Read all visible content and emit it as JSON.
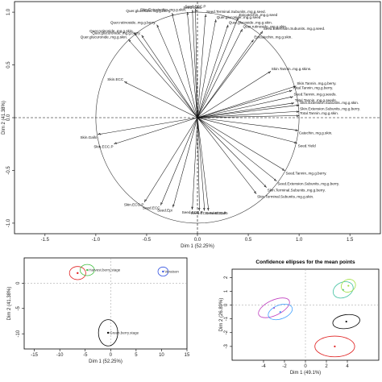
{
  "chart_data": [
    {
      "type": "scatter",
      "subtype": "pca-variable-correlation-circle",
      "xlabel": "Dim 1 (52.25%)",
      "ylabel": "Dim 2 (41.38%)",
      "xlim": [
        -1.8,
        1.8
      ],
      "ylim": [
        -1.1,
        1.1
      ],
      "x_ticks": [
        "-1.5",
        "-1.0",
        "-0.5",
        "0.0",
        "0.5",
        "1.0",
        "1.5"
      ],
      "y_ticks": [
        "-1.0",
        "-0.5",
        "0.0",
        "0.5",
        "1.0"
      ],
      "vectors": [
        {
          "label": "Skin.ECC",
          "x": -0.72,
          "y": 0.34
        },
        {
          "label": "Skin.Gallo",
          "x": -0.98,
          "y": -0.16
        },
        {
          "label": "Skin.ECC.P",
          "x": -0.82,
          "y": -0.25
        },
        {
          "label": "Skin.ECG.P",
          "x": -0.52,
          "y": -0.8
        },
        {
          "label": "Seed.ECC",
          "x": -0.36,
          "y": -0.83
        },
        {
          "label": "Seed.Epi",
          "x": -0.24,
          "y": -0.85
        },
        {
          "label": "Seed.ECC.P",
          "x": -0.05,
          "y": -0.87
        },
        {
          "label": "Seed.ECG",
          "x": 0.02,
          "y": -0.88
        },
        {
          "label": "Seed.ECG.P",
          "x": 0.07,
          "y": -0.88
        },
        {
          "label": "Seed.Gallo",
          "x": 0.11,
          "y": -0.88
        },
        {
          "label": "Skin.Terminal.Subunits..mg.g.skin.",
          "x": 0.58,
          "y": -0.72
        },
        {
          "label": "Skin.Terminal.Subunits..mg.g.berry.",
          "x": 0.68,
          "y": -0.66
        },
        {
          "label": "Seed.Extension.Subunits..mg.g.berry.",
          "x": 0.78,
          "y": -0.6
        },
        {
          "label": "Seed.Tannin..mg.g.berry.",
          "x": 0.86,
          "y": -0.5
        },
        {
          "label": "Seed.Yield",
          "x": 0.98,
          "y": -0.24
        },
        {
          "label": "Catechin..mg.g.skin.",
          "x": 0.99,
          "y": -0.12
        },
        {
          "label": "Total.Tannin..mg.g.skin.",
          "x": 1.0,
          "y": 0.02
        },
        {
          "label": "Skin.Tannin..mg.g.berry.",
          "x": 0.97,
          "y": 0.3
        },
        {
          "label": "Total.Tannin..mg.g.seeds.",
          "x": 0.95,
          "y": 0.14
        },
        {
          "label": "Seed.Tannin..mg.g.seeds.",
          "x": 0.94,
          "y": 0.2
        },
        {
          "label": "Total.Tannin..mg.g.berry.",
          "x": 0.93,
          "y": 0.26
        },
        {
          "label": "Skin.Extension.Subunits..mg.g.skin.",
          "x": 1.0,
          "y": 0.12
        },
        {
          "label": "Skin.Extension.Subunits..mg.g.berry.",
          "x": 1.0,
          "y": 0.06
        },
        {
          "label": "Skin.Tannin..mg.g.skins.",
          "x": 0.72,
          "y": 0.44
        },
        {
          "label": "Quer.rutinoside..mg.g.skin.",
          "x": 0.44,
          "y": 0.84
        },
        {
          "label": "Quer.glucoside..mg.g.skin.",
          "x": 0.3,
          "y": 0.88
        },
        {
          "label": "Quer.glucoside..mg.g.seed",
          "x": 0.18,
          "y": 0.93
        },
        {
          "label": "Epicatechin..mg.g.seed",
          "x": 0.4,
          "y": 0.95
        },
        {
          "label": "Seed.Extension.Subunits..mg.g.seed.",
          "x": 0.64,
          "y": 0.82
        },
        {
          "label": "Epicatechin..mg.g.skin.",
          "x": 0.55,
          "y": 0.74
        },
        {
          "label": "Skin.Epicatechin..mg.g.skin.",
          "x": -0.1,
          "y": 1.0
        },
        {
          "label": "Seed.Gallo",
          "x": -0.05,
          "y": 1.02
        },
        {
          "label": "Seed.ECC.P",
          "x": -0.02,
          "y": 1.03
        },
        {
          "label": "Seed.Terminal.Subunits..mg.g.seed.",
          "x": 0.08,
          "y": 0.98
        },
        {
          "label": "Quer.glucoside..mg.g.berry.",
          "x": -0.25,
          "y": 0.99
        },
        {
          "label": "Quer.rutinoside..mg.g.berry.",
          "x": -0.4,
          "y": 0.88
        },
        {
          "label": "Quer.glucuronide..mg.g.berry.",
          "x": -0.55,
          "y": 0.78
        },
        {
          "label": "Quer.glucuronide..mg.g.skin.",
          "x": -0.68,
          "y": 0.74
        },
        {
          "label": "Quer.rutinoside..mg.g.skin.",
          "x": -0.62,
          "y": 0.8
        }
      ]
    },
    {
      "type": "scatter",
      "subtype": "pca-individuals-with-ellipses",
      "xlabel": "Dim 1 (52.25%)",
      "ylabel": "Dim 2 (41.38%)",
      "xlim": [
        -17,
        15
      ],
      "ylim": [
        -13,
        5
      ],
      "x_ticks": [
        "-15",
        "-10",
        "-5",
        "0",
        "5",
        "10",
        "15"
      ],
      "y_ticks": [
        "-10",
        "-5",
        "0"
      ],
      "groups": [
        {
          "name": "",
          "color": "#e02020",
          "cx": -6.5,
          "cy": 2.0,
          "rx": 1.6,
          "ry": 1.3
        },
        {
          "name": "Harvest.berry.stage",
          "color": "#40c040",
          "cx": -4.6,
          "cy": 2.6,
          "rx": 1.4,
          "ry": 1.1
        },
        {
          "name": "Veraison",
          "color": "#3050e0",
          "cx": 10.3,
          "cy": 2.3,
          "rx": 1.0,
          "ry": 0.9
        },
        {
          "name": "Green.berry.stage",
          "color": "#000000",
          "cx": -0.5,
          "cy": -9.8,
          "rx": 1.9,
          "ry": 2.6
        }
      ]
    },
    {
      "type": "scatter",
      "subtype": "pca-confidence-ellipses",
      "title": "Confidence ellipses for the mean points",
      "xlabel": "Dim 1 (49.1%)",
      "ylabel": "Dim 2 (26.89%)",
      "xlim": [
        -7,
        7
      ],
      "ylim": [
        -4,
        2.6
      ],
      "x_ticks": [
        "-4",
        "-2",
        "0",
        "2",
        "4"
      ],
      "y_ticks": [
        "-3",
        "-2",
        "-1",
        "0",
        "1",
        "2"
      ],
      "groups": [
        {
          "name": "",
          "color": "#c040c0",
          "cx": -3.0,
          "cy": -0.2,
          "rx": 1.6,
          "ry": 0.55,
          "rot": -25
        },
        {
          "name": "",
          "color": "#40a0ff",
          "cx": -2.4,
          "cy": -0.5,
          "rx": 1.2,
          "ry": 0.5,
          "rot": -20
        },
        {
          "name": "",
          "color": "#40c0a0",
          "cx": 3.6,
          "cy": 1.1,
          "rx": 1.0,
          "ry": 0.55,
          "rot": -25
        },
        {
          "name": "",
          "color": "#a0e040",
          "cx": 4.1,
          "cy": 1.4,
          "rx": 0.7,
          "ry": 0.45,
          "rot": -25
        },
        {
          "name": "",
          "color": "#000000",
          "cx": 3.9,
          "cy": -1.2,
          "rx": 1.3,
          "ry": 0.5,
          "rot": -8
        },
        {
          "name": "",
          "color": "#e02020",
          "cx": 2.8,
          "cy": -3.0,
          "rx": 1.9,
          "ry": 0.75,
          "rot": 0
        }
      ]
    }
  ]
}
